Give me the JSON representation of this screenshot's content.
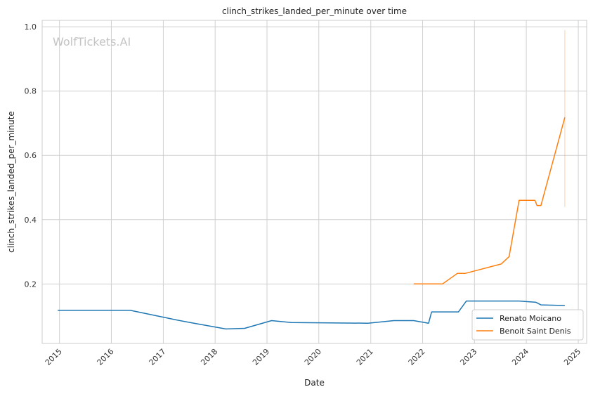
{
  "watermark": "WolfTickets.AI",
  "colors": {
    "grid": "#d0d0d0",
    "frame": "#cccccc",
    "series_0": "#1f77b4",
    "series_1": "#ff7f0e"
  },
  "chart_data": {
    "type": "line",
    "title": "clinch_strikes_landed_per_minute over time",
    "xlabel": "Date",
    "ylabel": "clinch_strikes_landed_per_minute",
    "x_ticks": [
      "2015",
      "2016",
      "2017",
      "2018",
      "2019",
      "2020",
      "2021",
      "2022",
      "2023",
      "2024",
      "2025"
    ],
    "y_ticks": [
      "0.2",
      "0.4",
      "0.6",
      "0.8",
      "1.0"
    ],
    "xlim": [
      "2014-09-01",
      "2025-03-01"
    ],
    "ylim": [
      0.015,
      1.02
    ],
    "grid": true,
    "legend_position": "lower-right",
    "series": [
      {
        "name": "Renato Moicano",
        "points": [
          [
            "2014-12-20",
            0.118
          ],
          [
            "2016-05-14",
            0.118
          ],
          [
            "2017-04-15",
            0.087
          ],
          [
            "2017-08-05",
            0.078
          ],
          [
            "2018-03-17",
            0.06
          ],
          [
            "2018-07-28",
            0.062
          ],
          [
            "2019-02-02",
            0.086
          ],
          [
            "2019-06-22",
            0.08
          ],
          [
            "2020-12-12",
            0.078
          ],
          [
            "2021-06-12",
            0.086
          ],
          [
            "2021-10-30",
            0.086
          ],
          [
            "2022-02-12",
            0.078
          ],
          [
            "2022-03-05",
            0.113
          ],
          [
            "2022-09-10",
            0.113
          ],
          [
            "2022-11-05",
            0.147
          ],
          [
            "2023-11-11",
            0.147
          ],
          [
            "2024-03-09",
            0.143
          ],
          [
            "2024-04-13",
            0.135
          ],
          [
            "2024-09-28",
            0.133
          ]
        ]
      },
      {
        "name": "Benoit Saint Denis",
        "points": [
          [
            "2021-10-30",
            0.2
          ],
          [
            "2022-05-21",
            0.2
          ],
          [
            "2022-09-03",
            0.233
          ],
          [
            "2022-10-29",
            0.233
          ],
          [
            "2023-07-08",
            0.262
          ],
          [
            "2023-09-02",
            0.285
          ],
          [
            "2023-11-11",
            0.46
          ],
          [
            "2024-03-02",
            0.46
          ],
          [
            "2024-03-16",
            0.444
          ],
          [
            "2024-04-13",
            0.444
          ],
          [
            "2024-09-28",
            0.718
          ]
        ]
      }
    ],
    "error_band": {
      "date": "2024-09-28",
      "low": 0.44,
      "high": 0.99
    }
  }
}
